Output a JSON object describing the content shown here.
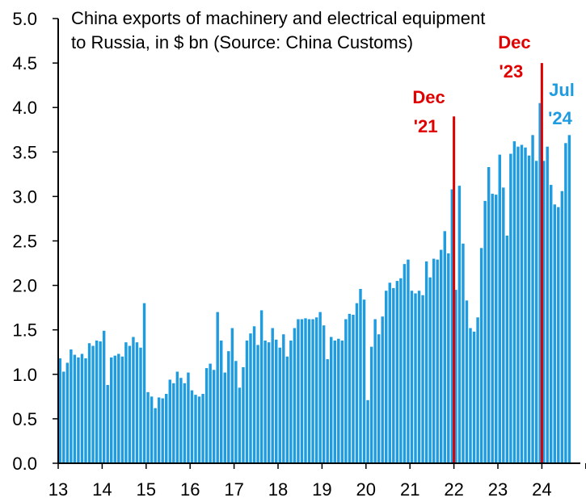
{
  "chart_data": {
    "type": "bar",
    "title_lines": [
      "China exports of machinery and electrical equipment",
      "to Russia, in $ bn (Source: China Customs)"
    ],
    "xlabel": "",
    "ylabel": "",
    "ylim": [
      0,
      5
    ],
    "y_ticks": [
      "0.0",
      "0.5",
      "1.0",
      "1.5",
      "2.0",
      "2.5",
      "3.0",
      "3.5",
      "4.0",
      "4.5",
      "5.0"
    ],
    "x_ticks": [
      "13",
      "14",
      "15",
      "16",
      "17",
      "18",
      "19",
      "20",
      "21",
      "22",
      "23",
      "24"
    ],
    "x_start_year": 13,
    "x_end_year": 25,
    "grid": false,
    "legend": "none",
    "series": [
      {
        "color": "#1f9be0",
        "values": [
          1.18,
          1.03,
          1.13,
          1.28,
          1.22,
          1.19,
          1.23,
          1.18,
          1.35,
          1.32,
          1.38,
          1.37,
          1.49,
          0.88,
          1.19,
          1.21,
          1.23,
          1.2,
          1.36,
          1.32,
          1.42,
          1.36,
          1.3,
          1.8,
          0.8,
          0.75,
          0.62,
          0.74,
          0.73,
          0.78,
          0.94,
          0.9,
          1.03,
          0.96,
          0.9,
          1.02,
          0.82,
          0.77,
          0.75,
          0.78,
          1.07,
          1.12,
          1.05,
          1.7,
          1.38,
          1.02,
          1.26,
          1.52,
          1.15,
          0.85,
          1.08,
          1.38,
          1.46,
          1.54,
          1.33,
          1.72,
          1.38,
          1.36,
          1.52,
          1.39,
          1.3,
          1.45,
          1.2,
          1.38,
          1.52,
          1.62,
          1.62,
          1.63,
          1.62,
          1.62,
          1.64,
          1.7,
          1.55,
          1.17,
          1.42,
          1.38,
          1.4,
          1.38,
          1.62,
          1.68,
          1.67,
          1.8,
          1.96,
          1.84,
          0.71,
          1.31,
          1.62,
          1.45,
          1.65,
          1.94,
          2.03,
          1.97,
          2.05,
          2.08,
          2.24,
          2.29,
          1.94,
          1.91,
          1.94,
          1.89,
          2.27,
          2.09,
          2.3,
          2.29,
          2.4,
          2.61,
          2.36,
          3.08,
          1.95,
          3.12,
          2.47,
          1.83,
          1.52,
          1.48,
          1.64,
          2.42,
          2.95,
          3.33,
          3.03,
          3.02,
          3.47,
          3.1,
          2.56,
          3.48,
          3.62,
          3.56,
          3.58,
          3.55,
          3.46,
          3.69,
          3.4,
          4.05,
          3.4,
          3.56,
          3.13,
          2.91,
          2.88,
          3.06,
          3.6,
          3.69
        ]
      }
    ],
    "annotations": [
      {
        "line1": "Dec",
        "line2": "'21",
        "color": "#e00000",
        "marker_line": true,
        "index": 107
      },
      {
        "line1": "Dec",
        "line2": "'23",
        "color": "#e00000",
        "marker_line": true,
        "index": 131
      },
      {
        "line1": "Jul",
        "line2": "'24",
        "color": "#1f9be0",
        "marker_line": false,
        "index": 138
      }
    ]
  }
}
